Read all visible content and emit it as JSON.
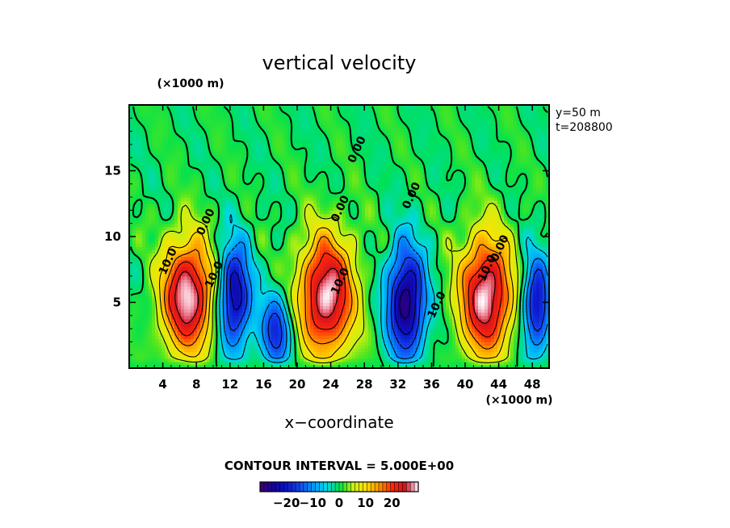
{
  "chart_data": {
    "type": "heatmap",
    "title": "vertical velocity",
    "xlabel": "x−coordinate",
    "x_unit": "(×1000 m)",
    "y_unit": "(×1000 m)",
    "xlim": [
      0,
      50
    ],
    "ylim": [
      0,
      20
    ],
    "x_ticks": [
      4,
      8,
      12,
      16,
      20,
      24,
      28,
      32,
      36,
      40,
      44,
      48
    ],
    "y_ticks": [
      5,
      10,
      15
    ],
    "annotations": [
      "y=50  m",
      "t=208800"
    ],
    "contour_interval_text": "CONTOUR INTERVAL = 5.000E+00",
    "contour_labels": [
      {
        "text": "10.0",
        "x": 5,
        "y": 8
      },
      {
        "text": "10.0",
        "x": 10.5,
        "y": 7
      },
      {
        "text": "0.00",
        "x": 9.5,
        "y": 11
      },
      {
        "text": "0.00",
        "x": 27.5,
        "y": 16.5
      },
      {
        "text": "0.00",
        "x": 25.5,
        "y": 12
      },
      {
        "text": "10.0",
        "x": 25.5,
        "y": 6.5
      },
      {
        "text": "0.00",
        "x": 34,
        "y": 13
      },
      {
        "text": "10.0",
        "x": 37,
        "y": 4.7
      },
      {
        "text": "0.00",
        "x": 44.5,
        "y": 9
      },
      {
        "text": "10.0",
        "x": 43,
        "y": 7.5
      }
    ],
    "colorbar": {
      "ticks": [
        "−20",
        "−10",
        "0",
        "10",
        "20"
      ],
      "tick_values": [
        -20,
        -10,
        0,
        10,
        20
      ],
      "range": [
        -30,
        30
      ]
    },
    "updrafts": [
      {
        "x": 7,
        "y": 5.5,
        "peak": 30,
        "sx": 2.2,
        "sy": 3.0
      },
      {
        "x": 23.5,
        "y": 5.5,
        "peak": 30,
        "sx": 2.3,
        "sy": 3.2
      },
      {
        "x": 42.5,
        "y": 5.5,
        "peak": 30,
        "sx": 2.2,
        "sy": 3.2
      }
    ],
    "downdrafts": [
      {
        "x": 12.5,
        "y": 5.5,
        "peak": -25,
        "sx": 1.4,
        "sy": 2.8
      },
      {
        "x": 17.5,
        "y": 2.8,
        "peak": -18,
        "sx": 1.3,
        "sy": 2.0
      },
      {
        "x": 33,
        "y": 5,
        "peak": -28,
        "sx": 1.6,
        "sy": 3.0
      },
      {
        "x": 48.5,
        "y": 4.8,
        "peak": -22,
        "sx": 1.2,
        "sy": 2.6
      }
    ]
  }
}
